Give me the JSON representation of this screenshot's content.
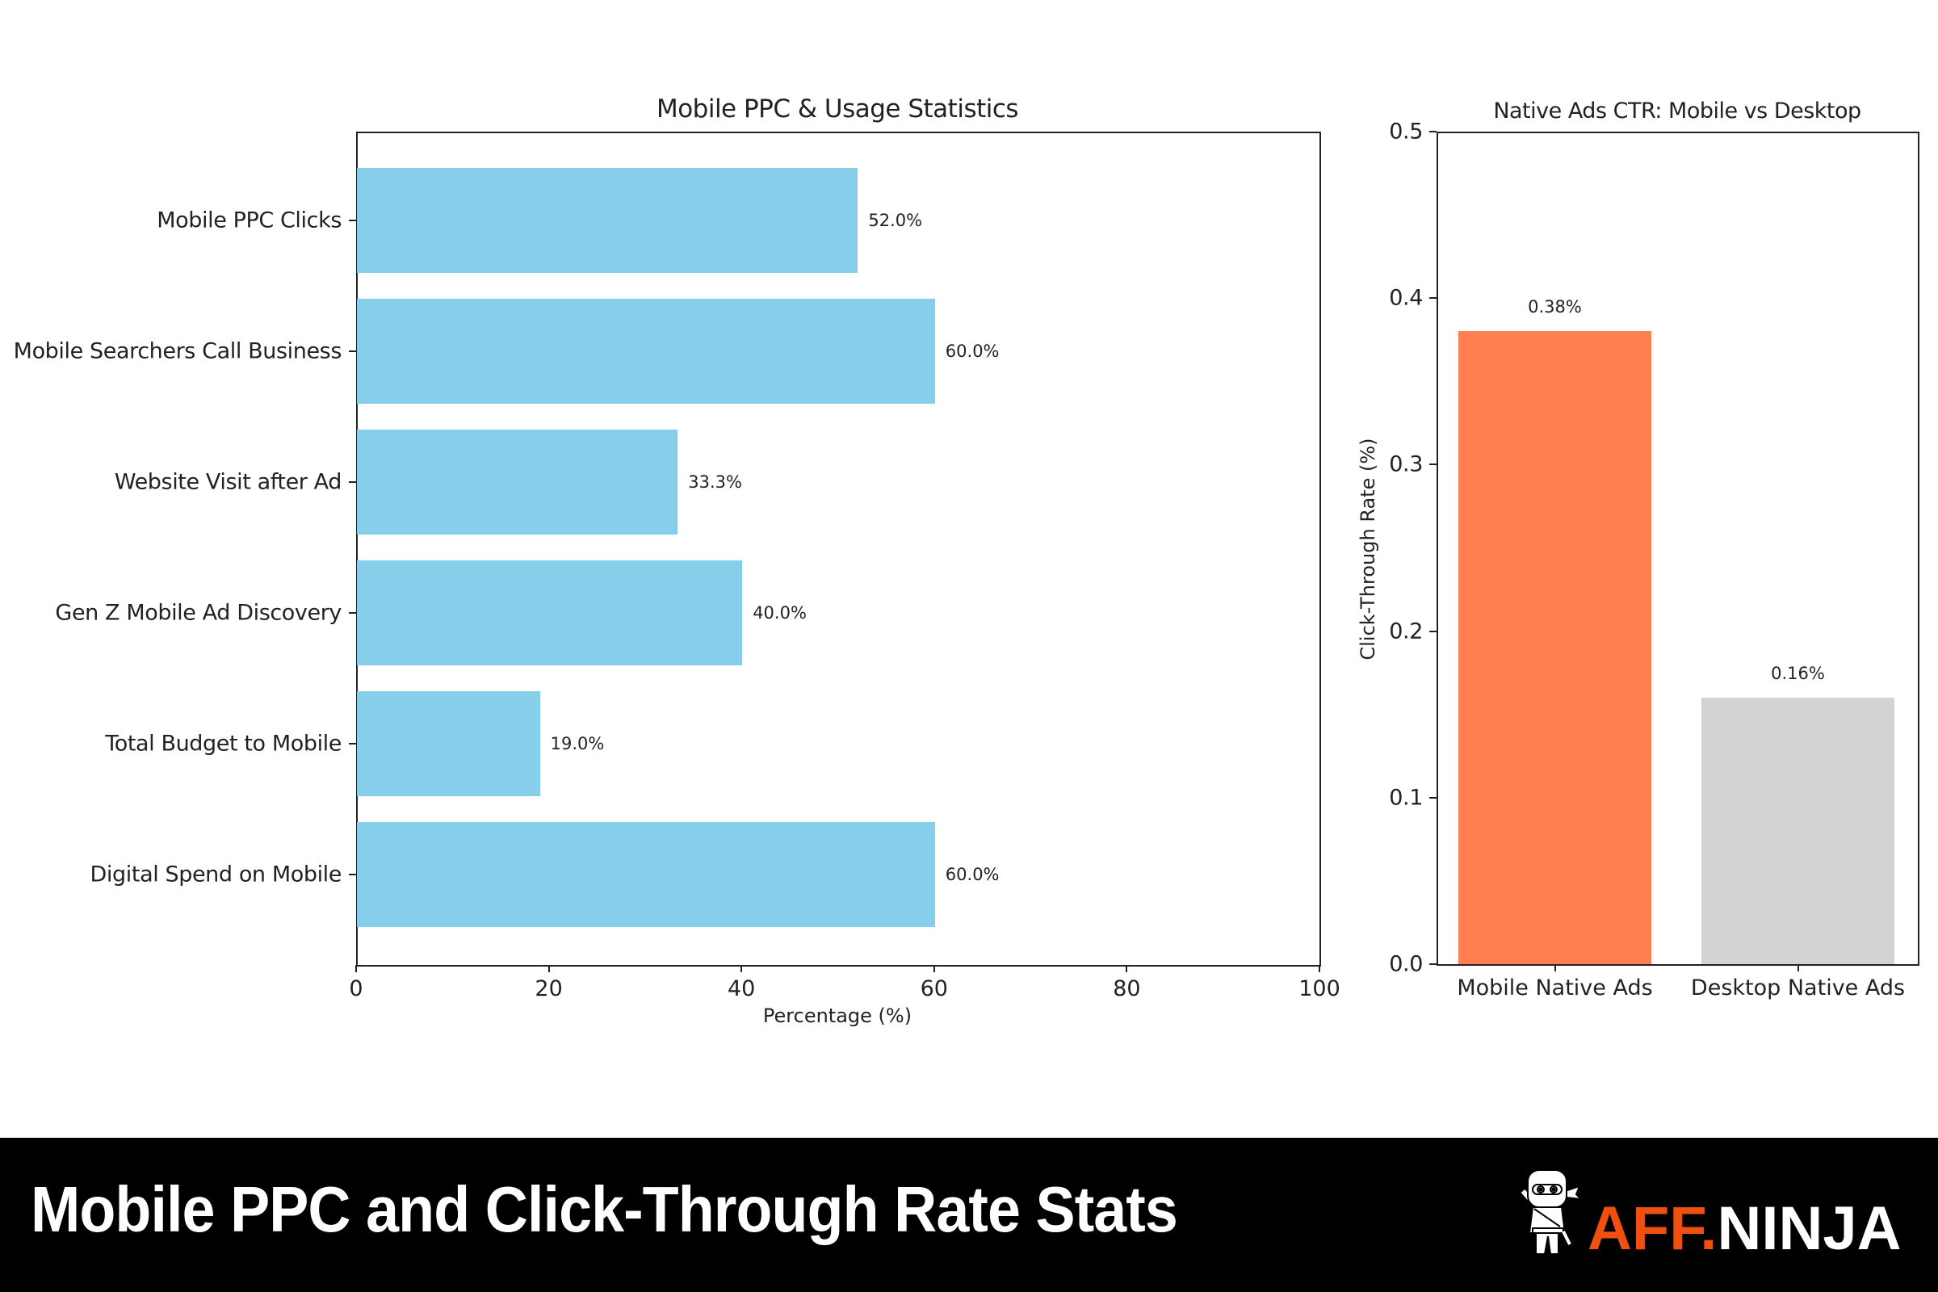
{
  "chart_data": [
    {
      "type": "bar",
      "orientation": "horizontal",
      "title": "Mobile PPC & Usage Statistics",
      "xlabel": "Percentage (%)",
      "ylabel": "",
      "xlim": [
        0,
        100
      ],
      "xticks": [
        "0",
        "20",
        "40",
        "60",
        "80",
        "100"
      ],
      "grid": false,
      "categories": [
        "Mobile PPC Clicks",
        "Mobile Searchers Call Business",
        "Website Visit after Ad",
        "Gen Z Mobile Ad Discovery",
        "Total Budget to Mobile",
        "Digital Spend on Mobile"
      ],
      "values": [
        52.0,
        60.0,
        33.3,
        40.0,
        19.0,
        60.0
      ],
      "value_labels": [
        "52.0%",
        "60.0%",
        "33.3%",
        "40.0%",
        "19.0%",
        "60.0%"
      ],
      "bar_color": "#87CEEB"
    },
    {
      "type": "bar",
      "orientation": "vertical",
      "title": "Native Ads CTR: Mobile vs Desktop",
      "xlabel": "",
      "ylabel": "Click-Through Rate (%)",
      "ylim": [
        0,
        0.5
      ],
      "yticks": [
        "0.0",
        "0.1",
        "0.2",
        "0.3",
        "0.4",
        "0.5"
      ],
      "grid": false,
      "categories": [
        "Mobile Native Ads",
        "Desktop Native Ads"
      ],
      "values": [
        0.38,
        0.16
      ],
      "value_labels": [
        "0.38%",
        "0.16%"
      ],
      "bar_colors": [
        "#FF7F50",
        "#D3D3D3"
      ]
    }
  ],
  "footer": {
    "title": "Mobile PPC and Click-Through Rate Stats",
    "brand_part1": "AFF.",
    "brand_part2": "NINJA",
    "brand_icon": "ninja-mascot-icon",
    "brand_accent_color": "#F0500F"
  }
}
